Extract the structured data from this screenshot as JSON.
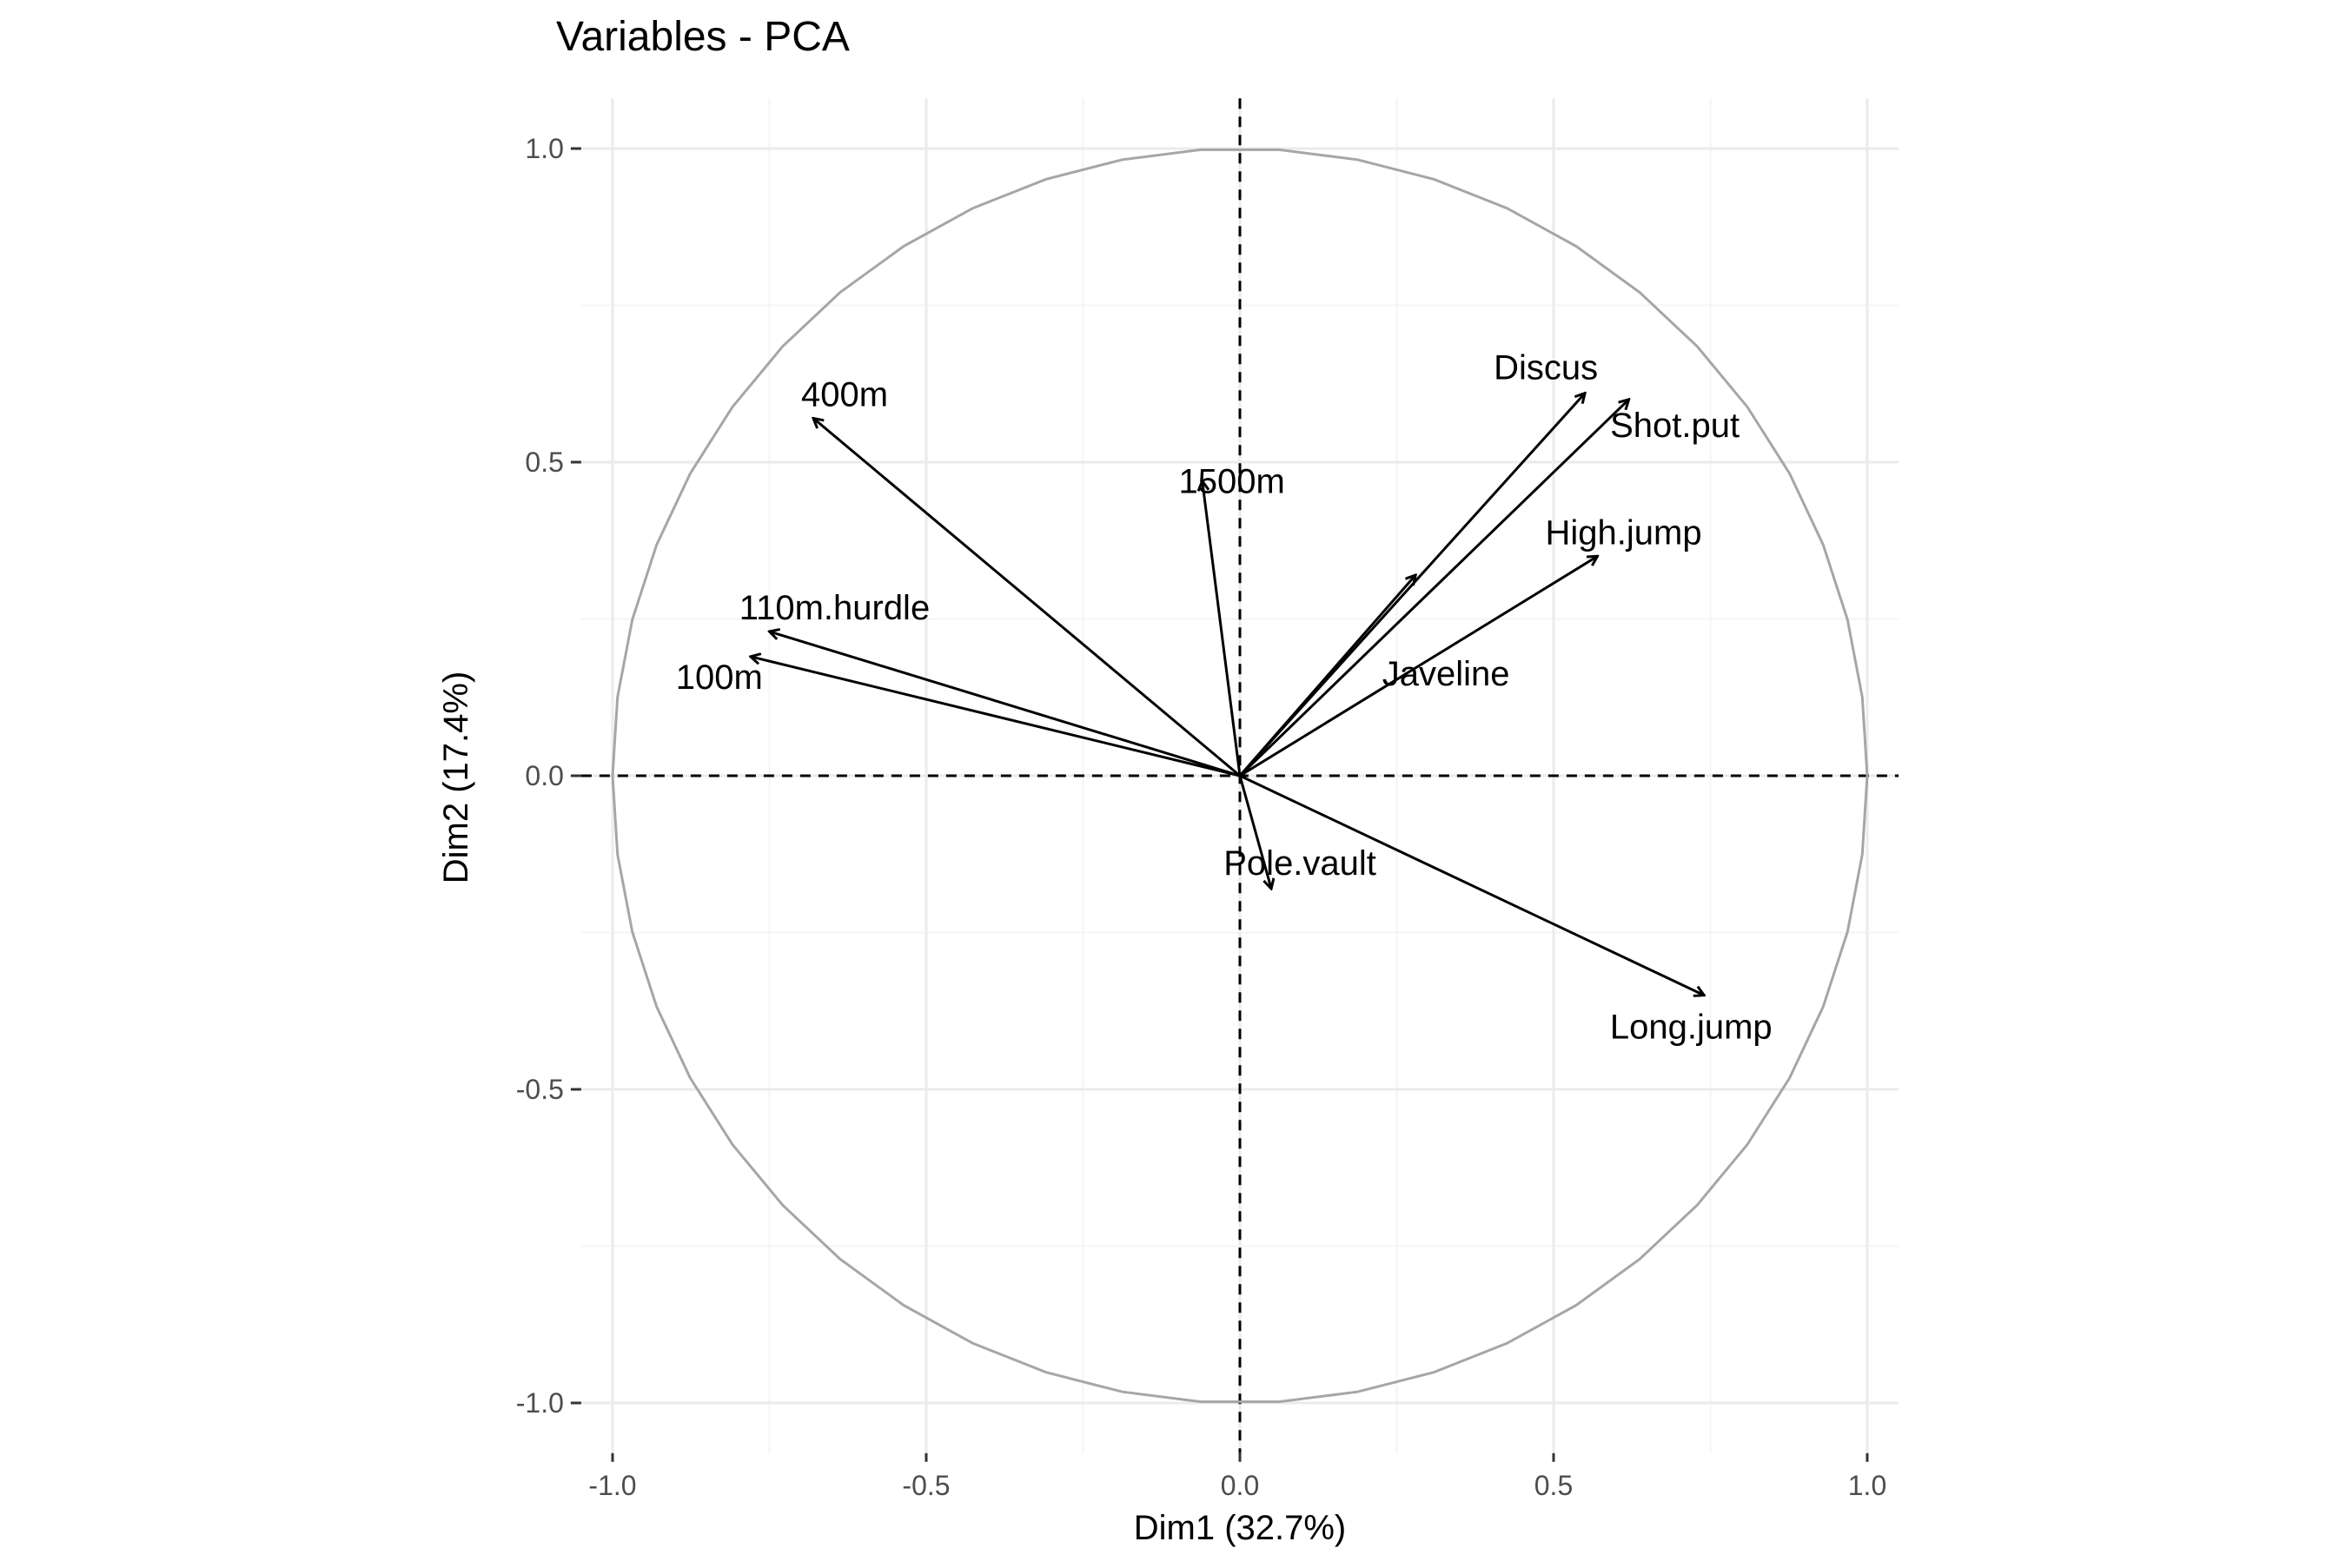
{
  "chart_data": {
    "type": "scatter",
    "subtype": "pca-correlation-circle",
    "title": "Variables - PCA",
    "xlabel": "Dim1 (32.7%)",
    "ylabel": "Dim2 (17.4%)",
    "xlim": [
      -1.05,
      1.05
    ],
    "ylim": [
      -1.08,
      1.08
    ],
    "xticks": [
      -1.0,
      -0.5,
      0.0,
      0.5,
      1.0
    ],
    "xtick_labels": [
      "-1.0",
      "-0.5",
      "0.0",
      "0.5",
      "1.0"
    ],
    "yticks": [
      -1.0,
      -0.5,
      0.0,
      0.5,
      1.0
    ],
    "ytick_labels": [
      "-1.0",
      "-0.5",
      "0.0",
      "0.5",
      "1.0"
    ],
    "grid": true,
    "unit_circle": true,
    "reference_lines": "dashed at x=0 and y=0",
    "colors": {
      "arrow": "#000000",
      "circle": "#a6a6a6",
      "grid_major": "#ebebeb",
      "grid_minor": "#f4f4f4",
      "tick_label": "#4d4d4d"
    },
    "variables": [
      {
        "name": "100m",
        "x": -0.78,
        "y": 0.19
      },
      {
        "name": "Long.jump",
        "x": 0.74,
        "y": -0.35
      },
      {
        "name": "Shot.put",
        "x": 0.62,
        "y": 0.6
      },
      {
        "name": "High.jump",
        "x": 0.57,
        "y": 0.35
      },
      {
        "name": "400m",
        "x": -0.68,
        "y": 0.57
      },
      {
        "name": "110m.hurdle",
        "x": -0.75,
        "y": 0.23
      },
      {
        "name": "Discus",
        "x": 0.55,
        "y": 0.61
      },
      {
        "name": "Pole.vault",
        "x": 0.05,
        "y": -0.18
      },
      {
        "name": "Javeline",
        "x": 0.28,
        "y": 0.32
      },
      {
        "name": "1500m",
        "x": -0.06,
        "y": 0.47
      }
    ]
  }
}
